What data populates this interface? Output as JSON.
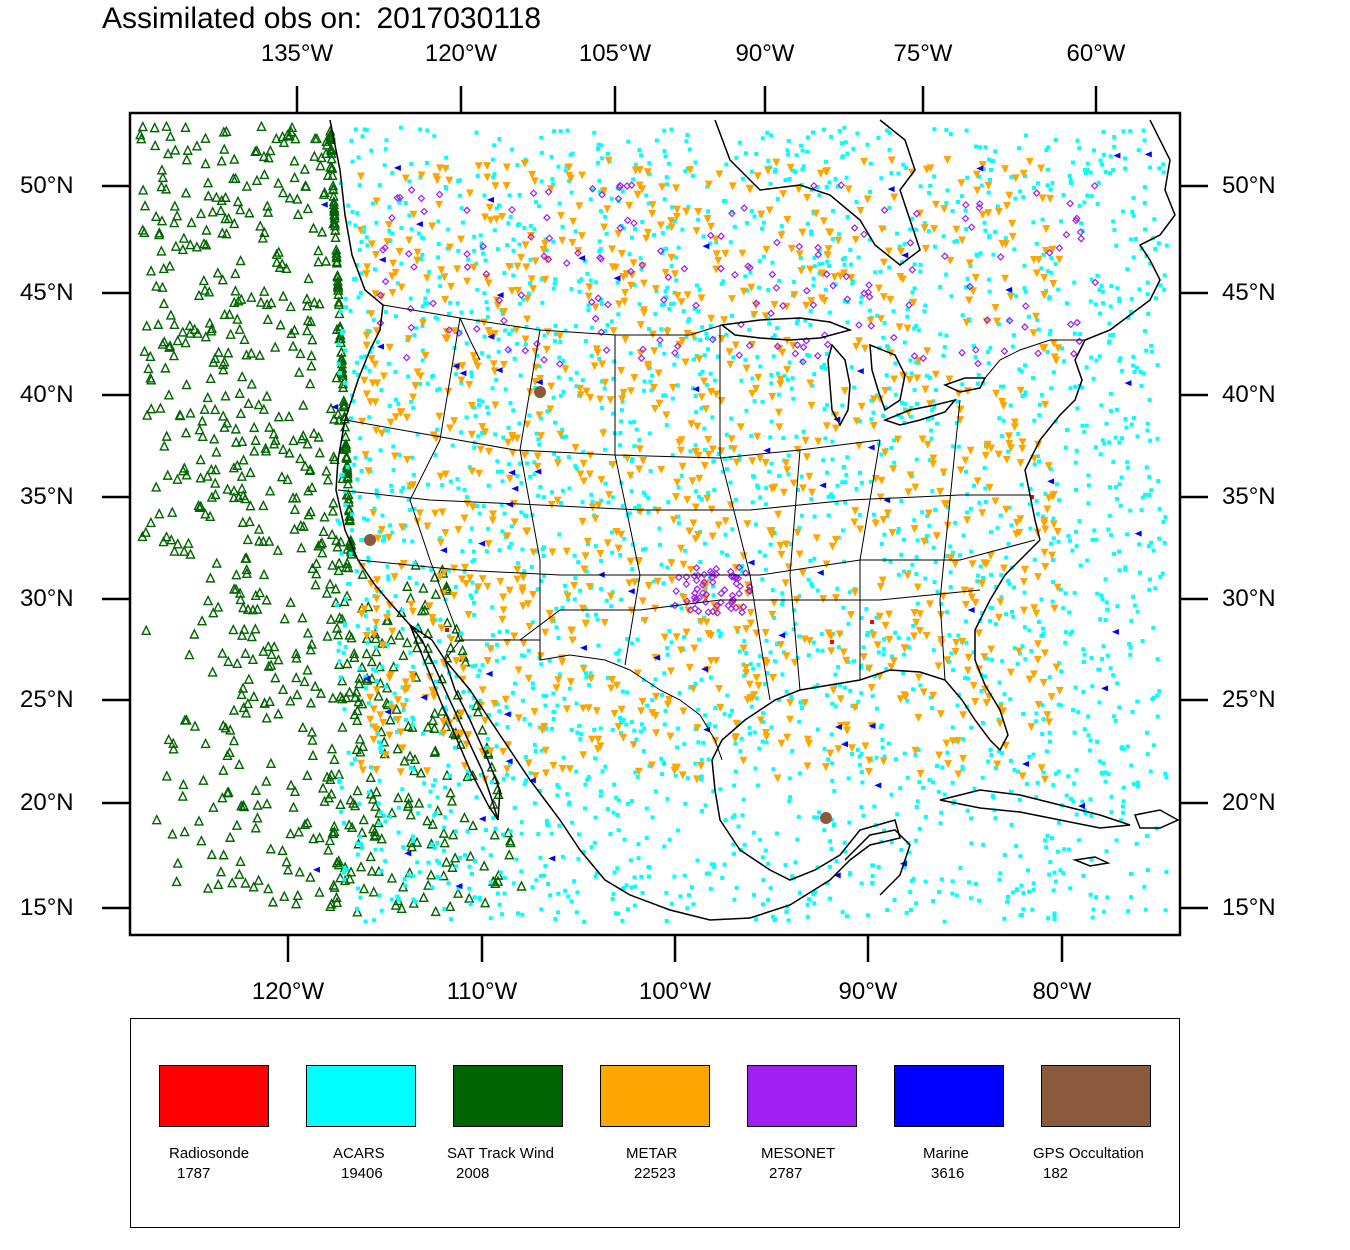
{
  "title": {
    "prefix": "Assimilated obs on:",
    "date": "2017030118"
  },
  "axes": {
    "top": [
      "135°W",
      "120°W",
      "105°W",
      "90°W",
      "75°W",
      "60°W"
    ],
    "bottom": [
      "120°W",
      "110°W",
      "100°W",
      "90°W",
      "80°W"
    ],
    "left": [
      "50°N",
      "45°N",
      "40°N",
      "35°N",
      "30°N",
      "25°N",
      "20°N",
      "15°N"
    ],
    "right": [
      "50°N",
      "45°N",
      "40°N",
      "35°N",
      "30°N",
      "25°N",
      "20°N",
      "15°N"
    ]
  },
  "legend": [
    {
      "name": "Radiosonde",
      "count": "1787",
      "color": "#ff0000"
    },
    {
      "name": "ACARS",
      "count": "19406",
      "color": "#00ffff"
    },
    {
      "name": "SAT Track Wind",
      "count": "2008",
      "color": "#006400"
    },
    {
      "name": "METAR",
      "count": "22523",
      "color": "#ffa500"
    },
    {
      "name": "MESONET",
      "count": "2787",
      "color": "#a020f0"
    },
    {
      "name": "Marine",
      "count": "3616",
      "color": "#0000ff"
    },
    {
      "name": "GPS Occultation",
      "count": "182",
      "color": "#8b5a3c"
    }
  ],
  "colors": {
    "radiosonde": "#ff0000",
    "acars": "#00ffff",
    "sat_track_wind": "#006400",
    "metar": "#ffa500",
    "mesonet": "#a020f0",
    "marine": "#0000ff",
    "gps": "#8b5a3c"
  }
}
